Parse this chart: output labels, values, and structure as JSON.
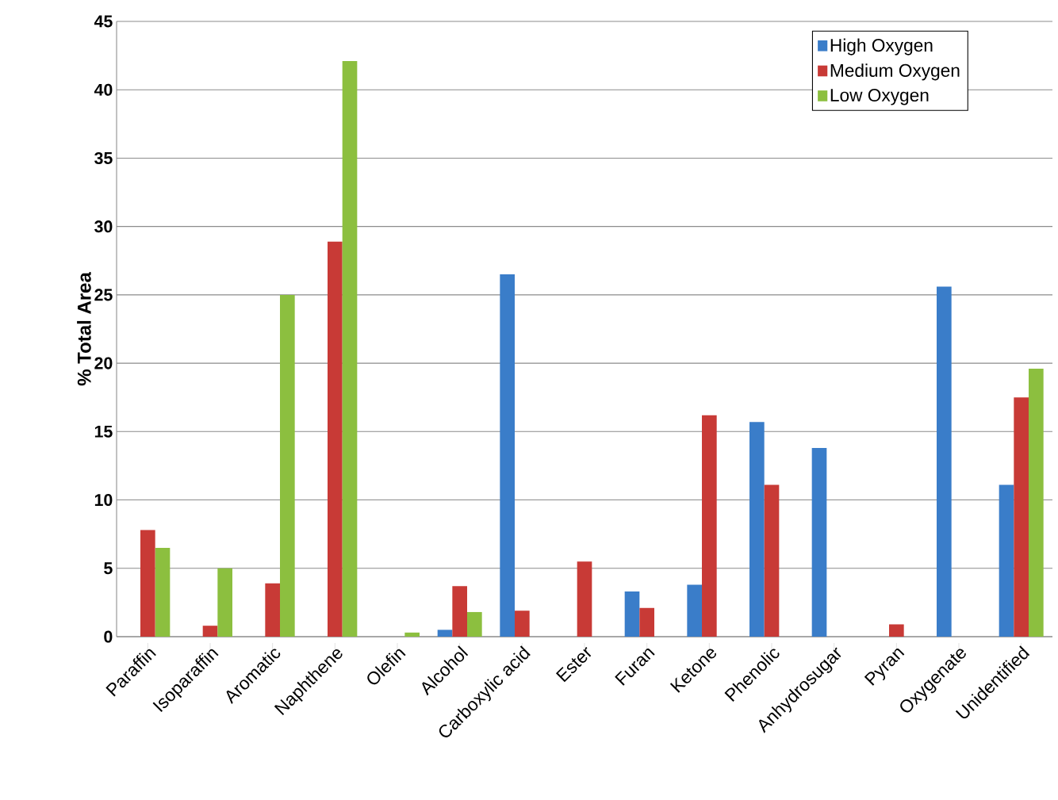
{
  "chart_data": {
    "type": "bar",
    "ylabel": "% Total Area",
    "categories": [
      "Paraffin",
      "Isoparaffin",
      "Aromatic",
      "Naphthene",
      "Olefin",
      "Alcohol",
      "Carboxylic acid",
      "Ester",
      "Furan",
      "Ketone",
      "Phenolic",
      "Anhydrosugar",
      "Pyran",
      "Oxygenate",
      "Unidentified"
    ],
    "series": [
      {
        "name": "High Oxygen",
        "color": "#3a7dc9",
        "values": [
          0,
          0,
          0,
          0,
          0,
          0.5,
          26.5,
          0,
          3.3,
          3.8,
          15.7,
          13.8,
          0,
          25.6,
          11.1
        ]
      },
      {
        "name": "Medium Oxygen",
        "color": "#c83a36",
        "values": [
          7.8,
          0.8,
          3.9,
          28.9,
          0,
          3.7,
          1.9,
          5.5,
          2.1,
          16.2,
          11.1,
          0,
          0.9,
          0,
          17.5
        ]
      },
      {
        "name": "Low Oxygen",
        "color": "#8cbf3f",
        "values": [
          6.5,
          5.0,
          25.0,
          42.1,
          0.3,
          1.8,
          0,
          0,
          0,
          0,
          0,
          0,
          0,
          0,
          19.6
        ]
      }
    ],
    "ylim": [
      0,
      45
    ],
    "yticks": [
      0,
      5,
      10,
      15,
      20,
      25,
      30,
      35,
      40,
      45
    ],
    "grid": "y",
    "legend": "top right"
  }
}
